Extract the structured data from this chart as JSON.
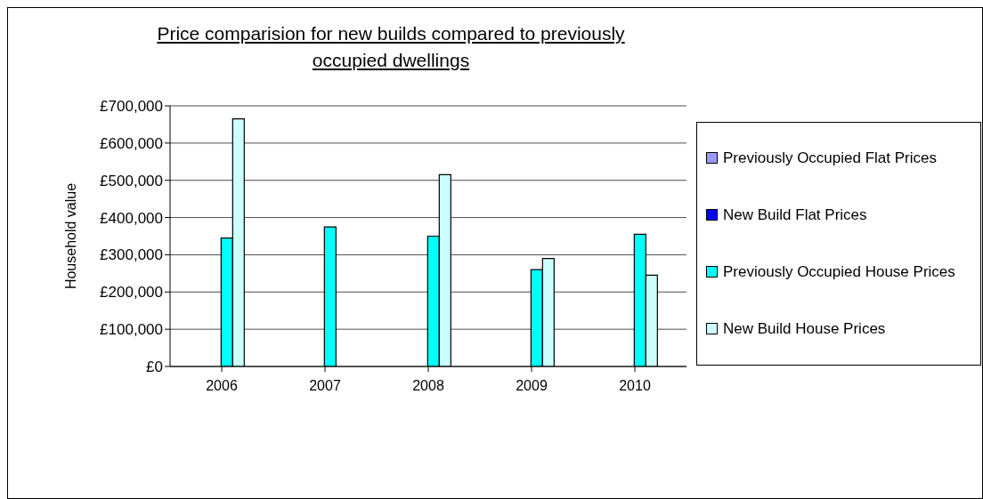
{
  "chart_data": {
    "type": "bar",
    "title": "Price comparision for new builds compared to previously occupied dwellings",
    "ylabel": "Household value",
    "categories": [
      "2006",
      "2007",
      "2008",
      "2009",
      "2010"
    ],
    "series": [
      {
        "name": "Previously Occupied Flat Prices",
        "color": "#9999ff",
        "values": [
          null,
          null,
          null,
          null,
          null
        ]
      },
      {
        "name": "New Build Flat Prices",
        "color": "#0000ff",
        "values": [
          null,
          null,
          null,
          null,
          null
        ]
      },
      {
        "name": "Previously Occupied House Prices",
        "color": "#00ffff",
        "values": [
          345000,
          375000,
          350000,
          260000,
          355000
        ]
      },
      {
        "name": "New Build House Prices",
        "color": "#ccffff",
        "values": [
          665000,
          null,
          515000,
          290000,
          245000
        ]
      }
    ],
    "ylim": [
      0,
      700000
    ],
    "yticks": [
      {
        "value": 0,
        "label": "£0"
      },
      {
        "value": 100000,
        "label": "£100,000"
      },
      {
        "value": 200000,
        "label": "£200,000"
      },
      {
        "value": 300000,
        "label": "£300,000"
      },
      {
        "value": 400000,
        "label": "£400,000"
      },
      {
        "value": 500000,
        "label": "£500,000"
      },
      {
        "value": 600000,
        "label": "£600,000"
      },
      {
        "value": 700000,
        "label": "£700,000"
      }
    ],
    "grid": "y",
    "legend": "right"
  }
}
